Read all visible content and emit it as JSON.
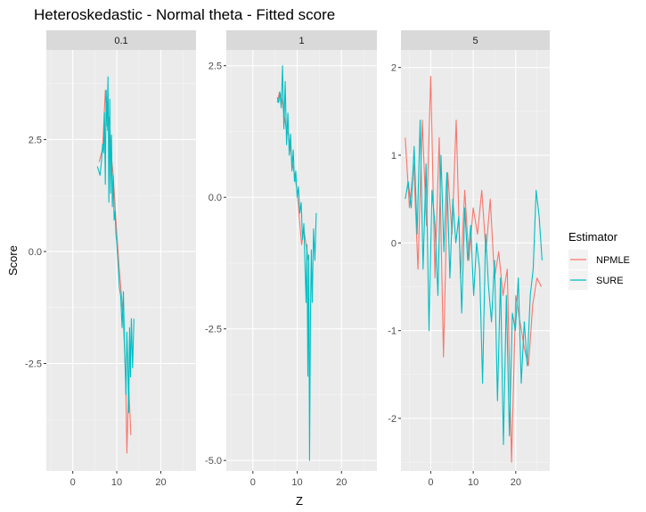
{
  "chart_data": {
    "type": "line",
    "title": "Heteroskedastic - Normal theta - Fitted score",
    "xlabel": "Z",
    "ylabel": "Score",
    "legend": {
      "title": "Estimator",
      "placement": "right",
      "entries": [
        {
          "name": "NPMLE",
          "color": "#F8766D"
        },
        {
          "name": "SURE",
          "color": "#00BFC4"
        }
      ]
    },
    "grid": true,
    "facets": [
      {
        "label": "0.1",
        "xlim": [
          -6,
          28
        ],
        "ylim": [
          -4.9,
          4.5
        ],
        "x_ticks": [
          0,
          10,
          20
        ],
        "y_ticks": [
          -2.5,
          0.0,
          2.5
        ],
        "y_tick_labels": [
          "-2.5",
          "0.0",
          "2.5"
        ],
        "series": [
          {
            "name": "NPMLE",
            "x": [
              6.0,
              6.8,
              7.4,
              7.9,
              8.3,
              8.7,
              9.1,
              9.5,
              10.0,
              10.5,
              11.0,
              11.5,
              12.0,
              12.3,
              12.7,
              13.2
            ],
            "y": [
              2.0,
              2.3,
              3.6,
              2.7,
              3.0,
              2.2,
              1.8,
              1.2,
              0.4,
              -0.3,
              -0.9,
              -1.6,
              -2.7,
              -4.5,
              -3.0,
              -4.1
            ]
          },
          {
            "name": "SURE",
            "x": [
              5.6,
              5.9,
              6.2,
              6.5,
              6.8,
              7.0,
              7.2,
              7.4,
              7.6,
              7.8,
              8.0,
              8.2,
              8.4,
              8.6,
              8.8,
              9.0,
              9.2,
              9.4,
              9.6,
              9.8,
              10.0,
              10.3,
              10.6,
              10.9,
              11.2,
              11.5,
              11.8,
              12.1,
              12.3,
              12.5,
              12.7,
              12.9,
              13.1,
              13.3,
              13.6,
              13.9
            ],
            "y": [
              1.9,
              1.8,
              1.7,
              2.0,
              2.4,
              2.2,
              3.1,
              1.5,
              3.6,
              2.8,
              3.9,
              1.1,
              3.4,
              1.3,
              2.6,
              1.0,
              1.7,
              0.7,
              0.9,
              0.4,
              0.2,
              -0.3,
              -0.8,
              -1.0,
              -1.7,
              -0.9,
              -2.3,
              -3.2,
              -1.8,
              -2.5,
              -3.6,
              -1.7,
              -2.8,
              -1.5,
              -2.6,
              -1.5
            ]
          }
        ]
      },
      {
        "label": "1",
        "xlim": [
          -6,
          28
        ],
        "ylim": [
          -5.2,
          2.8
        ],
        "x_ticks": [
          0,
          10,
          20
        ],
        "y_ticks": [
          -5.0,
          -2.5,
          0.0,
          2.5
        ],
        "y_tick_labels": [
          "-5.0",
          "-2.5",
          "0.0",
          "2.5"
        ],
        "series": [
          {
            "name": "NPMLE",
            "x": [
              5.5,
              6.0,
              6.5,
              7.0,
              7.5,
              8.0,
              8.5,
              9.0,
              9.5,
              10.0,
              10.5,
              11.0,
              11.5,
              12.0,
              12.5
            ],
            "y": [
              1.8,
              2.0,
              1.9,
              1.6,
              1.3,
              1.2,
              0.9,
              0.6,
              0.4,
              0.1,
              -0.4,
              -0.9,
              -0.6,
              -0.9,
              -1.2
            ]
          },
          {
            "name": "SURE",
            "x": [
              5.5,
              5.8,
              6.1,
              6.4,
              6.7,
              7.0,
              7.3,
              7.6,
              7.9,
              8.2,
              8.5,
              8.8,
              9.1,
              9.4,
              9.7,
              10.0,
              10.3,
              10.6,
              10.9,
              11.2,
              11.5,
              11.8,
              12.0,
              12.2,
              12.4,
              12.6,
              12.8,
              13.0,
              13.2,
              13.4,
              13.7,
              14.0,
              14.3
            ],
            "y": [
              1.9,
              1.8,
              2.0,
              1.7,
              2.5,
              1.3,
              2.2,
              1.0,
              1.6,
              0.8,
              1.2,
              0.5,
              0.9,
              0.3,
              0.5,
              0.0,
              0.2,
              -0.3,
              -0.1,
              -0.8,
              -0.5,
              -1.4,
              -2.0,
              -0.9,
              -3.4,
              -1.1,
              -5.0,
              -2.3,
              -1.0,
              -2.0,
              -0.6,
              -1.2,
              -0.3
            ]
          }
        ]
      },
      {
        "label": "5",
        "xlim": [
          -7,
          28
        ],
        "ylim": [
          -2.6,
          2.2
        ],
        "x_ticks": [
          0,
          10,
          20
        ],
        "y_ticks": [
          -2,
          -1,
          0,
          1,
          2
        ],
        "y_tick_labels": [
          "-2",
          "-1",
          "0",
          "1",
          "2"
        ],
        "series": [
          {
            "name": "NPMLE",
            "x": [
              -6.0,
              -5.0,
              -4.0,
              -3.0,
              -2.0,
              -1.0,
              0.0,
              1.0,
              2.0,
              3.0,
              4.0,
              5.0,
              6.0,
              7.0,
              8.0,
              9.0,
              10.0,
              11.0,
              12.0,
              13.0,
              14.0,
              15.0,
              16.0,
              17.0,
              18.0,
              19.0,
              20.0,
              21.0,
              22.0,
              23.0,
              24.0,
              25.0,
              26.0
            ],
            "y": [
              1.2,
              0.4,
              0.9,
              -0.3,
              1.4,
              0.2,
              1.9,
              -0.4,
              1.2,
              -1.3,
              0.8,
              0.1,
              1.4,
              -0.4,
              0.6,
              -0.2,
              0.4,
              0.1,
              0.6,
              -0.1,
              0.5,
              -0.4,
              -0.1,
              -0.6,
              -0.3,
              -2.5,
              -0.6,
              -0.9,
              -1.2,
              -1.4,
              -0.7,
              -0.4,
              -0.5
            ]
          },
          {
            "name": "SURE",
            "x": [
              -6.0,
              -5.3,
              -4.6,
              -3.9,
              -3.2,
              -2.5,
              -1.8,
              -1.1,
              -0.4,
              0.3,
              1.0,
              1.7,
              2.4,
              3.1,
              3.8,
              4.5,
              5.2,
              5.9,
              6.6,
              7.3,
              8.0,
              8.7,
              9.4,
              10.1,
              10.8,
              11.5,
              12.2,
              12.9,
              13.6,
              14.3,
              15.0,
              15.7,
              16.4,
              17.1,
              17.8,
              18.5,
              19.2,
              19.9,
              20.6,
              21.3,
              22.0,
              22.7,
              23.4,
              24.1,
              24.8,
              25.5,
              26.2
            ],
            "y": [
              0.5,
              0.7,
              0.4,
              1.1,
              0.1,
              1.4,
              -0.3,
              0.9,
              -1.0,
              0.6,
              0.2,
              -0.6,
              1.0,
              -0.1,
              0.8,
              -0.4,
              0.5,
              0.0,
              0.3,
              -0.8,
              0.4,
              -0.2,
              0.2,
              -0.6,
              0.0,
              -0.3,
              -1.6,
              0.1,
              -0.5,
              -0.9,
              -0.2,
              -1.8,
              -0.4,
              -2.3,
              -0.6,
              -2.2,
              -0.8,
              -1.0,
              -0.4,
              -1.6,
              -0.9,
              -1.4,
              -0.6,
              -0.3,
              0.6,
              0.3,
              -0.2
            ]
          }
        ]
      }
    ]
  }
}
